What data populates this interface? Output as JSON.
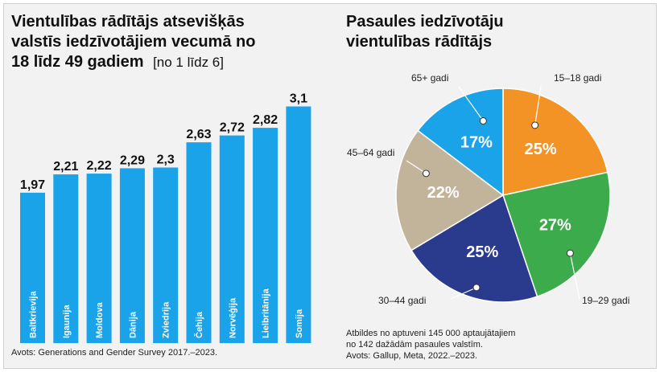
{
  "chart_data": [
    {
      "type": "bar",
      "title_lines": [
        "Vientulības rādītājs atsevišķās",
        "valstīs iedzīvotājiem vecumā no",
        "18 līdz 49 gadiem"
      ],
      "unit_note": "[no 1 līdz 6]",
      "categories": [
        "Baltkrievija",
        "Igaunija",
        "Moldova",
        "Dānija",
        "Zviedrija",
        "Čehija",
        "Norvēģija",
        "Lielbritānija",
        "Somija"
      ],
      "values": [
        1.97,
        2.21,
        2.22,
        2.29,
        2.3,
        2.63,
        2.72,
        2.82,
        3.1
      ],
      "value_labels": [
        "1,97",
        "2,21",
        "2,22",
        "2,29",
        "2,3",
        "2,63",
        "2,72",
        "2,82",
        "3,1"
      ],
      "ylim": [
        0,
        3.25
      ],
      "bar_color": "#1aa3e8",
      "source": "Avots: Generations and Gender Survey 2017.–2023."
    },
    {
      "type": "pie",
      "title_lines": [
        "Pasaules iedzīvotāju",
        "vientulības rādītājs"
      ],
      "slices": [
        {
          "label": "15–18 gadi",
          "value": 25,
          "pct_label": "25%",
          "color": "#f39325"
        },
        {
          "label": "19–29 gadi",
          "value": 27,
          "pct_label": "27%",
          "color": "#3cab4b"
        },
        {
          "label": "30–44 gadi",
          "value": 25,
          "pct_label": "25%",
          "color": "#2a3a8c"
        },
        {
          "label": "45–64 gadi",
          "value": 22,
          "pct_label": "22%",
          "color": "#c2b49b"
        },
        {
          "label": "65+ gadi",
          "value": 17,
          "pct_label": "17%",
          "color": "#1aa3e8"
        }
      ],
      "note_lines": [
        "Atbildes no aptuveni 145 000 aptaujātajiem",
        "no 142 dažādām pasaules valstīm.",
        "Avots: Gallup, Meta, 2022.–2023."
      ]
    }
  ]
}
